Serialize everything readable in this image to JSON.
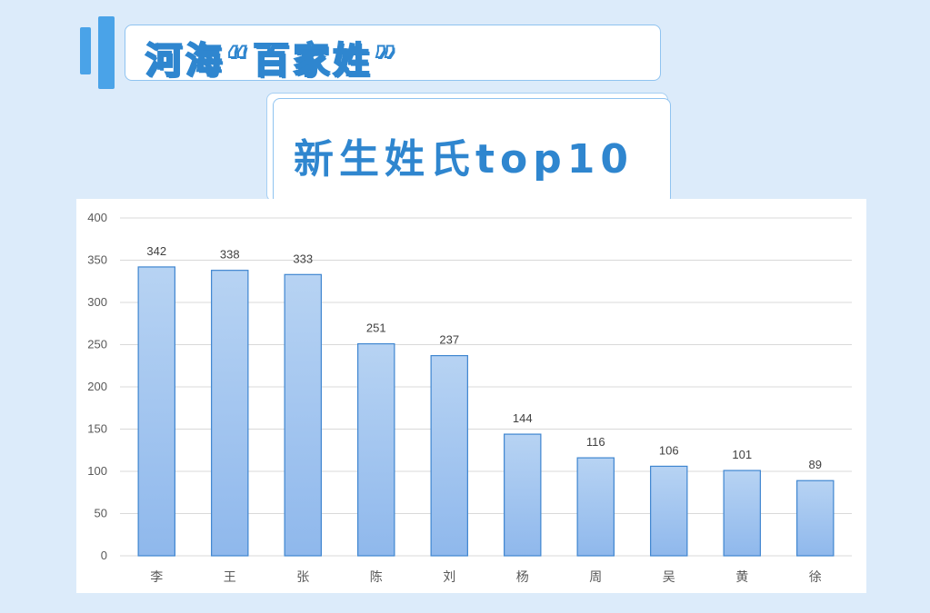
{
  "header": {
    "title": "河海“百家姓”",
    "subtitle": "新生姓氏top10"
  },
  "colors": {
    "background": "#dcebfa",
    "accent": "#2f86cf",
    "bar_fill_top": "#b7d3f3",
    "bar_fill_bottom": "#8fb8ec",
    "bar_stroke": "#3f86d0",
    "grid": "#d9d9d9"
  },
  "chart_data": {
    "type": "bar",
    "categories": [
      "李",
      "王",
      "张",
      "陈",
      "刘",
      "杨",
      "周",
      "吴",
      "黄",
      "徐"
    ],
    "values": [
      342,
      338,
      333,
      251,
      237,
      144,
      116,
      106,
      101,
      89
    ],
    "yticks": [
      0,
      50,
      100,
      150,
      200,
      250,
      300,
      350,
      400
    ],
    "ylim": [
      0,
      400
    ],
    "grid": true,
    "data_labels": true,
    "title": "",
    "xlabel": "",
    "ylabel": ""
  }
}
